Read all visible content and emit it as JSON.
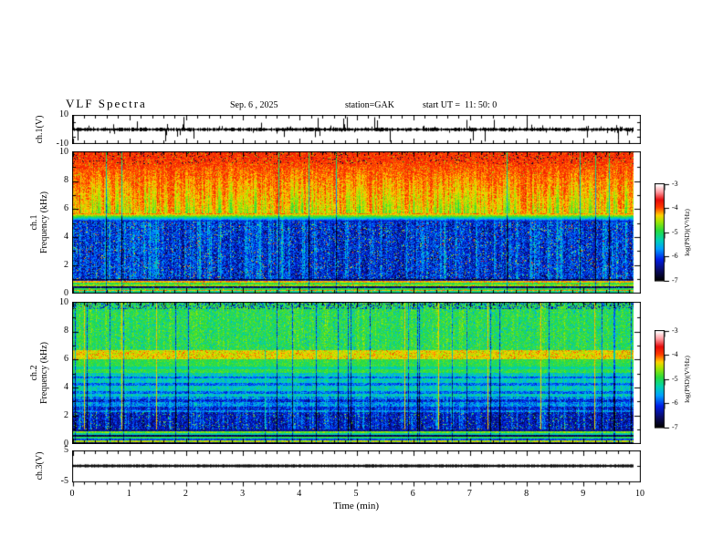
{
  "header": {
    "title": "VLF Spectra",
    "date": "Sep. 6 , 2025",
    "station": "station=GAK",
    "start_ut": "start UT =  11: 50: 0"
  },
  "axes": {
    "ch1_voltage": {
      "label": "ch.1(V)",
      "ticks": [
        "10",
        "-10"
      ]
    },
    "ch1_frequency": {
      "channel": "ch.1",
      "label": "Frequency (kHz)",
      "ticks": [
        "10",
        "8",
        "6",
        "4",
        "2",
        "0"
      ]
    },
    "ch2_frequency": {
      "channel": "ch.2",
      "label": "Frequency (kHz)",
      "ticks": [
        "10",
        "8",
        "6",
        "4",
        "2",
        "0"
      ]
    },
    "ch3_voltage": {
      "label": "ch.3(V)",
      "ticks": [
        "5",
        "-5"
      ]
    },
    "time": {
      "label": "Time (min)",
      "ticks": [
        "0",
        "1",
        "2",
        "3",
        "4",
        "5",
        "6",
        "7",
        "8",
        "9",
        "10"
      ]
    }
  },
  "colorbar": {
    "label": "log(PSD)(V²/Hz)",
    "ticks": [
      "-3",
      "-4",
      "-5",
      "-6",
      "-7"
    ],
    "value_range": [
      -7,
      -3
    ],
    "colormap": "black-blue-cyan-green-yellow-red-pink-white rainbow"
  },
  "chart_data": [
    {
      "type": "line",
      "name": "ch1-waveform",
      "ylabel": "ch.1(V)",
      "ylim": [
        -10,
        10
      ],
      "xlim_min": [
        0,
        10
      ],
      "data_end_min": 9.87,
      "baseline_V": 0,
      "noise_halfwidth_V": 1.0,
      "spike_probability": 0.13,
      "spike_amplitude_V": [
        1.5,
        9
      ],
      "color": "#000000"
    },
    {
      "type": "heatmap",
      "name": "ch1-spectrogram",
      "ylabel": "ch.1 Frequency (kHz)",
      "ylim_kHz": [
        0,
        10
      ],
      "xlim_min": [
        0,
        10
      ],
      "data_end_min": 9.87,
      "value_units": "log(PSD)(V²/Hz)",
      "value_range": [
        -7,
        -3
      ],
      "bands": [
        {
          "f_kHz": [
            5.7,
            10.0
          ],
          "base": -3.88,
          "wedge_depth": 1.35,
          "wedge_top_kHz": 9.55,
          "texture": "red-orange field with green/yellow vertical wedges narrowing upward"
        },
        {
          "f_kHz": [
            5.1,
            5.7
          ],
          "base": -6.35,
          "texture": "sharp blue-to-red transition ramp"
        },
        {
          "f_kHz": [
            1.0,
            5.1
          ],
          "base": -6.35,
          "stripe_boost": 1.15,
          "texture": "dark blue with dense cyan vertical stripes"
        },
        {
          "f_kHz": [
            0.0,
            1.0
          ],
          "texture": "horizontal colored stripes",
          "stripes": [
            {
              "f": [
                0.0,
                0.1
              ],
              "v": -5.2
            },
            {
              "f": [
                0.1,
                0.22
              ],
              "v": -4.2
            },
            {
              "f": [
                0.22,
                0.34
              ],
              "v": -5.0
            },
            {
              "f": [
                0.34,
                0.46
              ],
              "v": -6.6
            },
            {
              "f": [
                0.46,
                0.6
              ],
              "v": -4.6
            },
            {
              "f": [
                0.6,
                0.72
              ],
              "v": -4.95
            },
            {
              "f": [
                0.72,
                0.82
              ],
              "v": -4.25
            },
            {
              "f": [
                0.82,
                0.92
              ],
              "v": -6.3
            },
            {
              "f": [
                0.92,
                1.0
              ],
              "v": -6.8
            }
          ]
        }
      ]
    },
    {
      "type": "heatmap",
      "name": "ch2-spectrogram",
      "ylabel": "ch.2 Frequency (kHz)",
      "ylim_kHz": [
        0,
        10
      ],
      "xlim_min": [
        0,
        10
      ],
      "data_end_min": 9.87,
      "value_units": "log(PSD)(V²/Hz)",
      "value_range": [
        -7,
        -3
      ],
      "bands": [
        {
          "f_kHz": [
            6.65,
            10.0
          ],
          "base": -4.95,
          "texture": "green with cyan speckle and dark vertical lines"
        },
        {
          "f_kHz": [
            6.0,
            6.65
          ],
          "base": -4.4,
          "texture": "bright yellow-orange band with red speckle"
        },
        {
          "f_kHz": [
            5.0,
            6.0
          ],
          "base": -5.0,
          "dark_rows_kHz": [
            [
              5.3,
              5.45
            ]
          ],
          "texture": "green"
        },
        {
          "f_kHz": [
            3.3,
            5.0
          ],
          "base": -5.45,
          "dark_rows_kHz": [
            [
              3.5,
              3.72
            ],
            [
              4.1,
              4.32
            ],
            [
              4.6,
              4.78
            ]
          ],
          "texture": "cyan-green with darker horizontal stripes"
        },
        {
          "f_kHz": [
            2.2,
            3.3
          ],
          "base": -5.9,
          "dark_rows_kHz": [
            [
              2.35,
              2.6
            ],
            [
              2.95,
              3.1
            ]
          ],
          "texture": "blue with cyan vertical stripes"
        },
        {
          "f_kHz": [
            1.0,
            2.2
          ],
          "base": -6.5,
          "texture": "very dark blue-black band"
        },
        {
          "f_kHz": [
            0.0,
            1.0
          ],
          "texture": "horizontal colored stripes",
          "stripes": [
            {
              "f": [
                0.0,
                0.08
              ],
              "v": -6.6
            },
            {
              "f": [
                0.08,
                0.18
              ],
              "v": -4.5
            },
            {
              "f": [
                0.18,
                0.3
              ],
              "v": -6.0
            },
            {
              "f": [
                0.3,
                0.44
              ],
              "v": -5.0
            },
            {
              "f": [
                0.44,
                0.58
              ],
              "v": -6.7
            },
            {
              "f": [
                0.58,
                0.72
              ],
              "v": -5.3
            },
            {
              "f": [
                0.72,
                0.84
              ],
              "v": -4.7
            },
            {
              "f": [
                0.84,
                1.0
              ],
              "v": -6.4
            }
          ]
        }
      ]
    },
    {
      "type": "line",
      "name": "ch3-waveform",
      "ylabel": "ch.3(V)",
      "ylim": [
        -5,
        5
      ],
      "xlim_min": [
        0,
        10
      ],
      "data_end_min": 9.87,
      "baseline_V": 0,
      "noise_halfwidth_V": 0.15,
      "description": "flat dark trace at 0 V",
      "color": "#101010"
    }
  ]
}
